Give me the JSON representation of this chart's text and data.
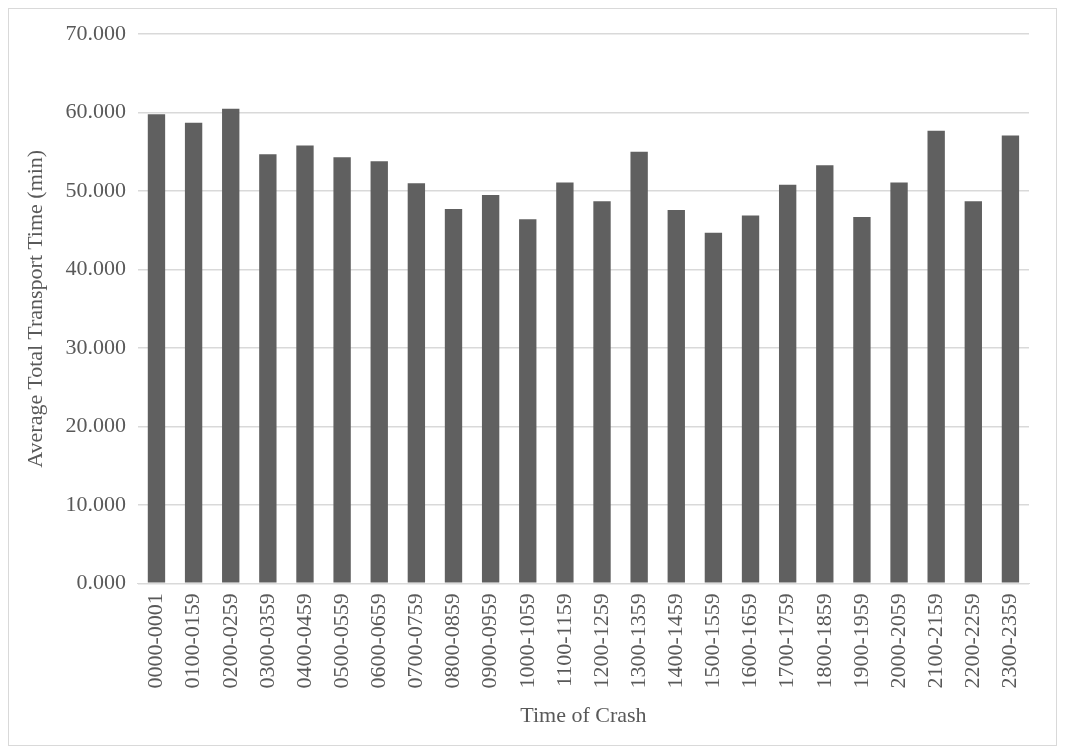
{
  "chart_data": {
    "type": "bar",
    "xlabel": "Time of Crash",
    "ylabel": "Average Total Transport Time (min)",
    "categories": [
      "0000-0001",
      "0100-0159",
      "0200-0259",
      "0300-0359",
      "0400-0459",
      "0500-0559",
      "0600-0659",
      "0700-0759",
      "0800-0859",
      "0900-0959",
      "1000-1059",
      "1100-1159",
      "1200-1259",
      "1300-1359",
      "1400-1459",
      "1500-1559",
      "1600-1659",
      "1700-1759",
      "1800-1859",
      "1900-1959",
      "2000-2059",
      "2100-2159",
      "2200-2259",
      "2300-2359"
    ],
    "values": [
      59.8,
      58.7,
      60.5,
      54.7,
      55.8,
      54.3,
      53.8,
      51.0,
      47.7,
      49.5,
      46.4,
      51.1,
      48.7,
      55.0,
      47.6,
      44.7,
      46.9,
      50.8,
      53.3,
      46.7,
      51.1,
      57.7,
      48.7,
      57.1
    ],
    "color": "#606060",
    "ylim": [
      0,
      70
    ],
    "yticks": [
      {
        "value": 0,
        "label": "0.000"
      },
      {
        "value": 10,
        "label": "10.000"
      },
      {
        "value": 20,
        "label": "20.000"
      },
      {
        "value": 30,
        "label": "30.000"
      },
      {
        "value": 40,
        "label": "40.000"
      },
      {
        "value": 50,
        "label": "50.000"
      },
      {
        "value": 60,
        "label": "60.000"
      },
      {
        "value": 70,
        "label": "70.000"
      }
    ],
    "grid": "y",
    "legend": false
  }
}
